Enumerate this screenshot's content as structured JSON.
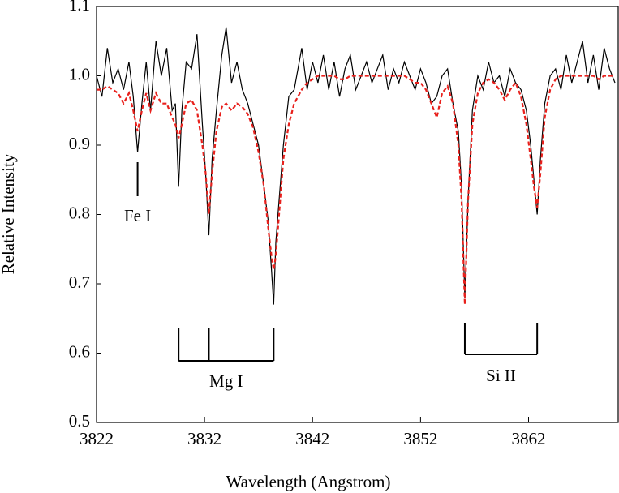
{
  "chart_data": {
    "type": "line",
    "xlabel": "Wavelength (Angstrom)",
    "ylabel": "Relative Intensity",
    "xlim": [
      3822,
      3870.3
    ],
    "ylim": [
      0.5,
      1.1
    ],
    "xticks": [
      3822,
      3832,
      3842,
      3852,
      3862
    ],
    "yticks": [
      0.5,
      0.6,
      0.7,
      0.8,
      0.9,
      {
        "value": 1,
        "label": "1.0"
      },
      1.1
    ],
    "x": [
      3822,
      3822.5,
      3823,
      3823.5,
      3824,
      3824.5,
      3825,
      3825.4,
      3825.8,
      3826.2,
      3826.6,
      3827,
      3827.5,
      3828,
      3828.5,
      3829,
      3829.3,
      3829.6,
      3829.9,
      3830.3,
      3830.8,
      3831.3,
      3831.8,
      3832.1,
      3832.4,
      3832.7,
      3833.1,
      3833.6,
      3834,
      3834.5,
      3835,
      3835.5,
      3836,
      3836.5,
      3837,
      3837.5,
      3837.9,
      3838.2,
      3838.4,
      3838.6,
      3838.9,
      3839.3,
      3839.8,
      3840.3,
      3841,
      3841.5,
      3842,
      3842.5,
      3843,
      3843.5,
      3844,
      3844.5,
      3845,
      3845.5,
      3846,
      3846.5,
      3847,
      3847.5,
      3848,
      3848.5,
      3849,
      3849.5,
      3850,
      3850.5,
      3851,
      3851.5,
      3852,
      3852.5,
      3853,
      3853.5,
      3854,
      3854.5,
      3855,
      3855.5,
      3855.8,
      3856.1,
      3856.4,
      3856.8,
      3857.3,
      3857.8,
      3858.3,
      3858.8,
      3859.3,
      3859.8,
      3860.3,
      3860.8,
      3861.3,
      3861.8,
      3862.2,
      3862.5,
      3862.8,
      3863.1,
      3863.5,
      3864,
      3864.5,
      3865,
      3865.5,
      3866,
      3866.5,
      3867,
      3867.5,
      3868,
      3868.5,
      3869,
      3869.5,
      3870
    ],
    "series": [
      {
        "color": "#000000",
        "dash": false,
        "values": [
          1.0,
          0.97,
          1.04,
          0.99,
          1.01,
          0.98,
          1.02,
          0.97,
          0.89,
          0.96,
          1.02,
          0.95,
          1.05,
          1.0,
          1.04,
          0.95,
          0.96,
          0.84,
          0.95,
          1.02,
          1.01,
          1.06,
          0.93,
          0.86,
          0.77,
          0.88,
          0.95,
          1.03,
          1.07,
          0.99,
          1.02,
          0.98,
          0.96,
          0.93,
          0.9,
          0.84,
          0.79,
          0.72,
          0.67,
          0.76,
          0.82,
          0.9,
          0.97,
          0.98,
          1.04,
          0.98,
          1.02,
          0.99,
          1.03,
          0.98,
          1.02,
          0.97,
          1.01,
          1.03,
          0.98,
          1.0,
          1.02,
          0.99,
          1.01,
          1.03,
          0.98,
          1.01,
          0.99,
          1.02,
          1.0,
          0.98,
          1.01,
          0.99,
          0.96,
          0.97,
          1.0,
          1.01,
          0.96,
          0.92,
          0.84,
          0.68,
          0.82,
          0.95,
          1.0,
          0.98,
          1.02,
          0.99,
          1.0,
          0.97,
          1.01,
          0.99,
          0.98,
          0.95,
          0.9,
          0.85,
          0.8,
          0.88,
          0.96,
          1.0,
          1.01,
          0.98,
          1.03,
          0.99,
          1.02,
          1.05,
          0.99,
          1.03,
          0.98,
          1.04,
          1.01,
          0.99
        ]
      },
      {
        "color": "#e8201c",
        "dash": true,
        "values": [
          0.98,
          0.98,
          0.985,
          0.98,
          0.975,
          0.96,
          0.975,
          0.95,
          0.92,
          0.95,
          0.975,
          0.95,
          0.975,
          0.96,
          0.96,
          0.94,
          0.93,
          0.91,
          0.93,
          0.96,
          0.965,
          0.95,
          0.9,
          0.86,
          0.8,
          0.86,
          0.92,
          0.955,
          0.96,
          0.95,
          0.96,
          0.955,
          0.945,
          0.925,
          0.89,
          0.84,
          0.78,
          0.74,
          0.72,
          0.74,
          0.8,
          0.88,
          0.93,
          0.96,
          0.98,
          0.99,
          0.995,
          1.0,
          1.0,
          1.0,
          1.0,
          0.995,
          0.995,
          1.0,
          1.0,
          1.0,
          1.0,
          1.0,
          1.0,
          1.0,
          1.0,
          1.0,
          1.0,
          1.0,
          0.995,
          0.99,
          0.99,
          0.98,
          0.96,
          0.94,
          0.975,
          0.985,
          0.96,
          0.9,
          0.82,
          0.67,
          0.82,
          0.93,
          0.975,
          0.99,
          0.995,
          0.99,
          0.98,
          0.965,
          0.98,
          0.99,
          0.97,
          0.93,
          0.88,
          0.84,
          0.81,
          0.86,
          0.94,
          0.98,
          0.995,
          1.0,
          1.0,
          1.0,
          1.0,
          1.0,
          1.0,
          1.0,
          0.995,
          1.0,
          1.0,
          1.0
        ]
      }
    ],
    "line_ids": [
      {
        "label": "Fe I",
        "wavelengths": [
          3825.8
        ]
      },
      {
        "label": "Mg I",
        "wavelengths": [
          3829.6,
          3832.4,
          3838.4
        ]
      },
      {
        "label": "Si II",
        "wavelengths": [
          3856.1,
          3862.8
        ]
      }
    ]
  }
}
